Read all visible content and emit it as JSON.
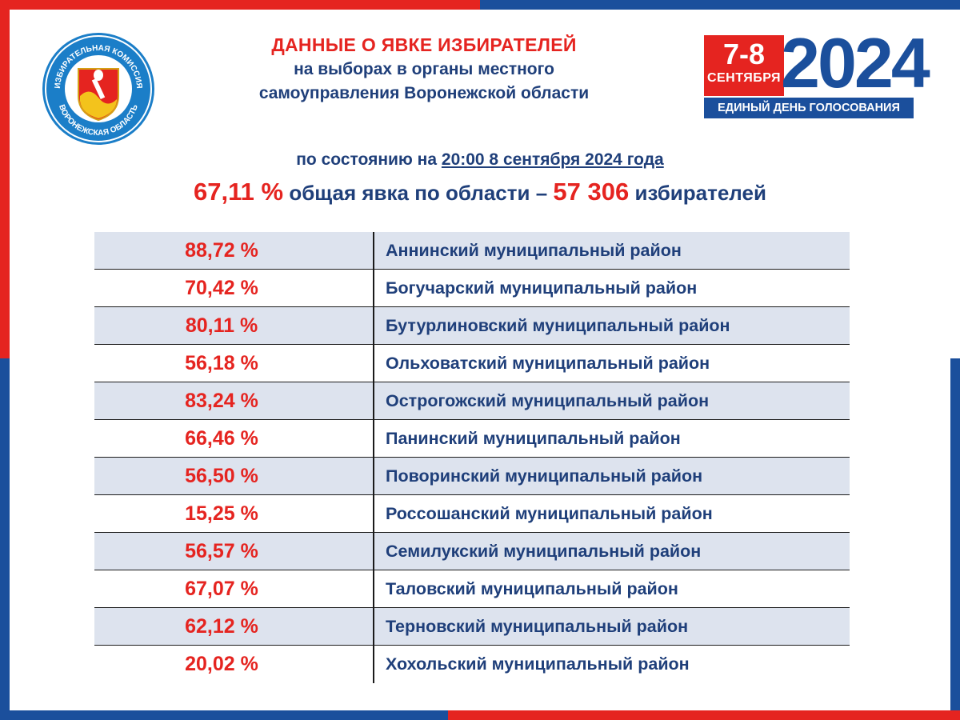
{
  "header": {
    "title": "ДАННЫЕ О ЯВКЕ ИЗБИРАТЕЛЕЙ",
    "subtitle_line1": "на выборах в органы местного",
    "subtitle_line2": "самоуправления Воронежской области"
  },
  "logo": {
    "top_text": "ИЗБИРАТЕЛЬНАЯ КОМИССИЯ",
    "bottom_text": "ВОРОНЕЖСКАЯ ОБЛАСТЬ"
  },
  "badge": {
    "dates": "7-8",
    "month": "СЕНТЯБРЯ",
    "year": "2024",
    "caption": "ЕДИНЫЙ ДЕНЬ ГОЛОСОВАНИЯ"
  },
  "status": {
    "prefix": "по состоянию на",
    "time": "20:00  8 сентября 2024 года"
  },
  "summary": {
    "percent": "67,11 %",
    "middle": "общая явка по области –",
    "voters": "57 306",
    "suffix": "избирателей"
  },
  "rows": [
    {
      "percent": "88,72 %",
      "name": "Аннинский муниципальный район"
    },
    {
      "percent": "70,42 %",
      "name": "Богучарский муниципальный район"
    },
    {
      "percent": "80,11 %",
      "name": "Бутурлиновский муниципальный район"
    },
    {
      "percent": "56,18 %",
      "name": "Ольховатский муниципальный район"
    },
    {
      "percent": "83,24 %",
      "name": "Острогожский муниципальный район"
    },
    {
      "percent": "66,46 %",
      "name": "Панинский муниципальный район"
    },
    {
      "percent": "56,50 %",
      "name": "Поворинский муниципальный район"
    },
    {
      "percent": "15,25 %",
      "name": "Россошанский муниципальный район"
    },
    {
      "percent": "56,57 %",
      "name": "Семилукский муниципальный район"
    },
    {
      "percent": "67,07 %",
      "name": "Таловский муниципальный район"
    },
    {
      "percent": "62,12 %",
      "name": "Терновский муниципальный район"
    },
    {
      "percent": "20,02 %",
      "name": "Хохольский муниципальный район"
    }
  ],
  "colors": {
    "accent_red": "#e52420",
    "brand_blue": "#1b4f9c",
    "text_blue": "#1f3f7a",
    "row_shade": "#dde3ee"
  }
}
